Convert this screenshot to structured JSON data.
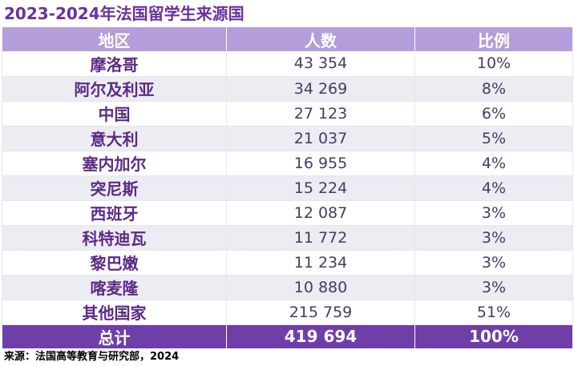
{
  "title": "2023-2024年法国留学生来源国",
  "headers": {
    "region": "地区",
    "count": "人数",
    "ratio": "比例"
  },
  "rows": [
    {
      "region": "摩洛哥",
      "count": "43 354",
      "ratio": "10%"
    },
    {
      "region": "阿尔及利亚",
      "count": "34 269",
      "ratio": "8%"
    },
    {
      "region": "中国",
      "count": "27 123",
      "ratio": "6%"
    },
    {
      "region": "意大利",
      "count": "21 037",
      "ratio": "5%"
    },
    {
      "region": "塞内加尔",
      "count": "16 955",
      "ratio": "4%"
    },
    {
      "region": "突尼斯",
      "count": "15 224",
      "ratio": "4%"
    },
    {
      "region": "西班牙",
      "count": "12 087",
      "ratio": "3%"
    },
    {
      "region": "科特迪瓦",
      "count": "11 772",
      "ratio": "3%"
    },
    {
      "region": "黎巴嫩",
      "count": "11 234",
      "ratio": "3%"
    },
    {
      "region": "喀麦隆",
      "count": "10 880",
      "ratio": "3%"
    },
    {
      "region": "其他国家",
      "count": "215 759",
      "ratio": "51%"
    }
  ],
  "total": {
    "label": "总计",
    "count": "419 694",
    "ratio": "100%"
  },
  "source": "来源：法国高等教育与研究部，2024",
  "colors": {
    "title": "#6a2fa0",
    "header_bg": "#b39ddb",
    "total_bg": "#6f3ea8",
    "stripe": "#ececf3"
  }
}
